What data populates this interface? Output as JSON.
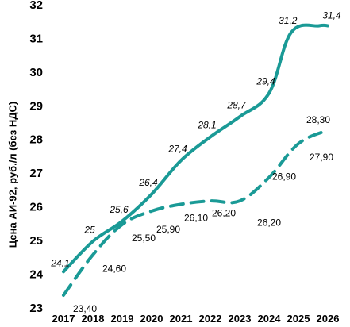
{
  "chart_data": {
    "type": "line",
    "ylabel": "Цена АИ-92, руб./л (без НДС)",
    "xlabel": "",
    "ylim": [
      23,
      32
    ],
    "yticks": [
      "23",
      "24",
      "25",
      "26",
      "27",
      "28",
      "29",
      "30",
      "31",
      "32"
    ],
    "categories": [
      "2017",
      "2018",
      "2019",
      "2020",
      "2021",
      "2022",
      "2023",
      "2024",
      "2025",
      "2026"
    ],
    "grid": false,
    "legend": "none",
    "series": [
      {
        "style": "solid",
        "color": "#1a9a96",
        "x": [
          2017,
          2018,
          2019,
          2020,
          2021,
          2022,
          2023,
          2024,
          2024.75,
          2025.7
        ],
        "values": [
          24.1,
          25.0,
          25.6,
          26.4,
          27.4,
          28.1,
          28.7,
          29.4,
          31.2,
          31.4
        ],
        "labels": [
          "24,1",
          "25",
          "25,6",
          "26,4",
          "27,4",
          "28,1",
          "28,7",
          "29,4",
          "31,2",
          "31,4"
        ]
      },
      {
        "style": "dashed",
        "color": "#1a9a96",
        "x": [
          2017,
          2018,
          2019,
          2020,
          2021,
          2022,
          2023,
          2024,
          2025,
          2026
        ],
        "values": [
          23.4,
          24.6,
          25.5,
          25.9,
          26.1,
          26.2,
          26.2,
          26.9,
          27.9,
          28.3
        ],
        "labels": [
          "23,40",
          "24,60",
          "25,50",
          "25,90",
          "26,10",
          "26,20",
          "26,20",
          "26,90",
          "27,90",
          "28,30"
        ]
      }
    ]
  }
}
